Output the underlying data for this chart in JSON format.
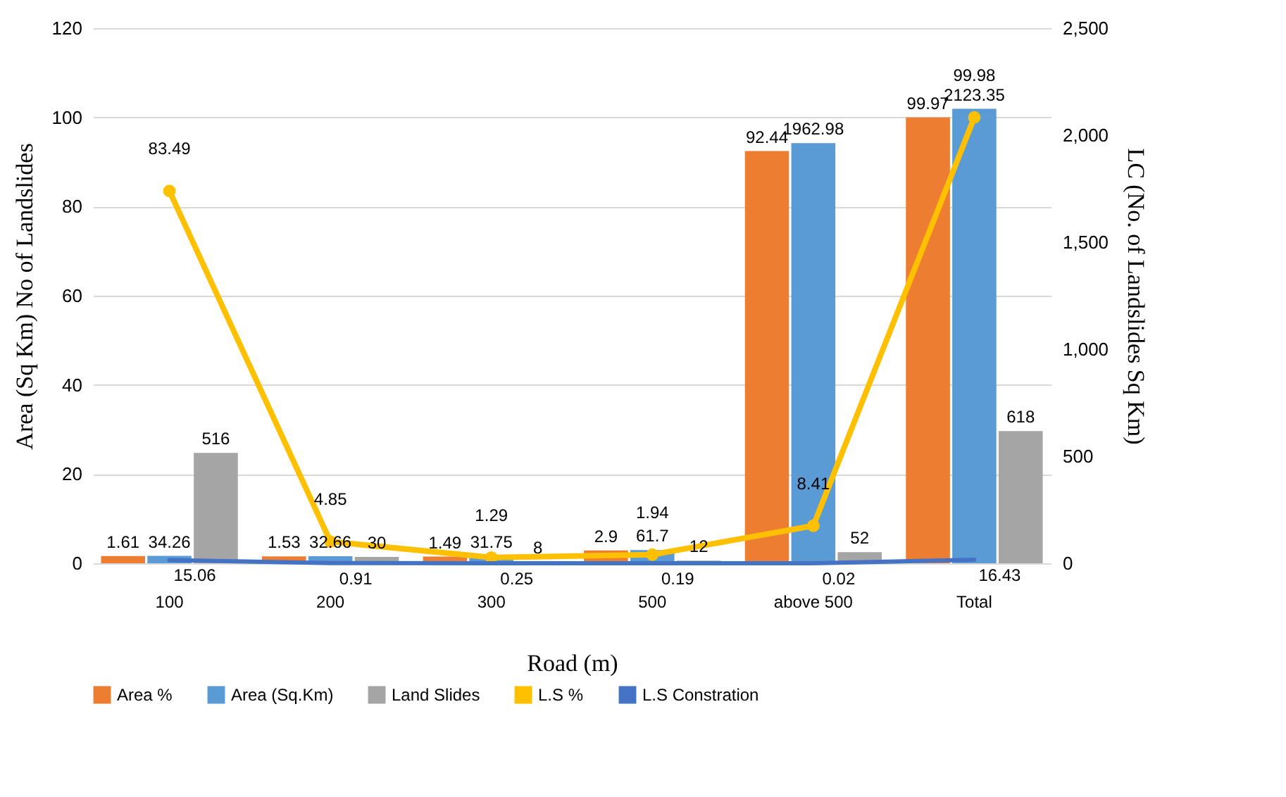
{
  "chart_data": {
    "type": "bar",
    "xlabel": "Road (m)",
    "ylabel": "Area (Sq Km) No of Landslides",
    "y2label": "LC (No. of Landslides Sq Km)",
    "categories": [
      "100",
      "200",
      "300",
      "500",
      "above 500",
      "Total"
    ],
    "series": [
      {
        "name": "Area %",
        "color": "#ed7d31",
        "values": [
          1.61,
          1.53,
          1.49,
          2.9,
          92.44,
          99.97
        ]
      },
      {
        "name": "Area (Sq.Km)",
        "color": "#5b9bd5",
        "axis": "y2",
        "values": [
          34.26,
          32.66,
          31.75,
          61.7,
          1962.98,
          2123.35
        ]
      },
      {
        "name": "Land Slides",
        "color": "#a5a5a5",
        "axis": "y2",
        "values": [
          516,
          30,
          8,
          12,
          52,
          618
        ]
      },
      {
        "name": "L.S %",
        "type": "line",
        "color": "#ffc000",
        "marker": "circle",
        "values": [
          83.49,
          4.85,
          1.29,
          1.94,
          8.41,
          99.98
        ]
      },
      {
        "name": "L.S Constration",
        "type": "line",
        "color": "#4472c4",
        "axis": "y2",
        "values": [
          15.06,
          0.91,
          0.25,
          0.19,
          0.02,
          16.43
        ]
      }
    ],
    "ylim": [
      0,
      120
    ],
    "yticks": [
      0,
      20,
      40,
      60,
      80,
      100,
      120
    ],
    "y2lim": [
      0,
      2500
    ],
    "y2ticks": [
      0,
      500,
      {
        "value": 1000,
        "label": "1,000"
      },
      {
        "value": 1500,
        "label": "1,500"
      },
      {
        "value": 2000,
        "label": "2,000"
      },
      {
        "value": 2500,
        "label": "2,500"
      }
    ],
    "data_labels": true,
    "grid": "y",
    "legend": "bottom"
  }
}
